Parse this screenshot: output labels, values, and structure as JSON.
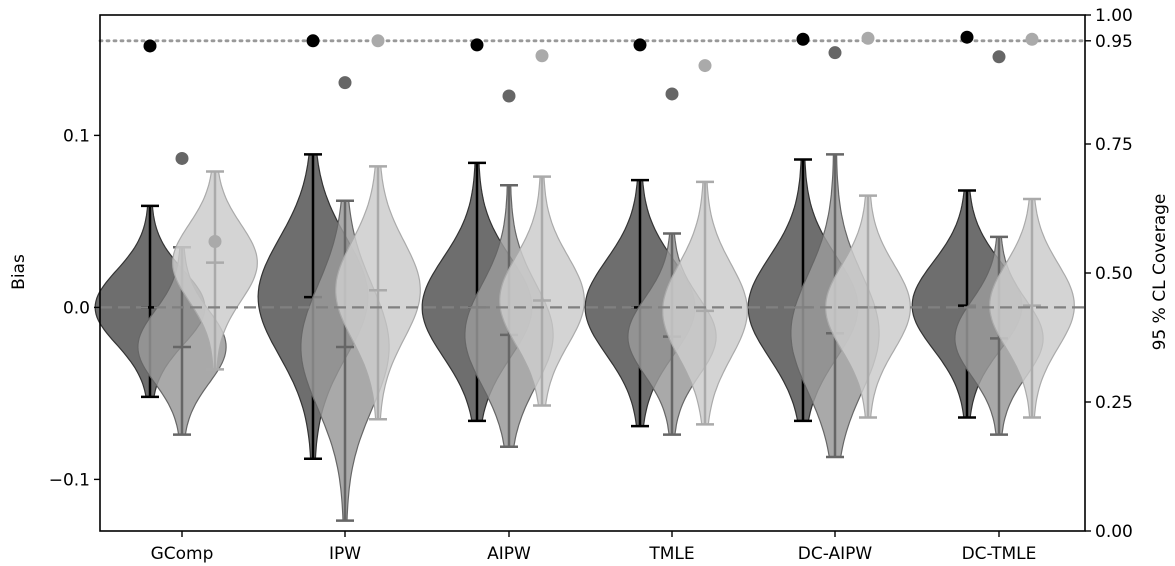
{
  "chart_data": {
    "type": "violin",
    "categories": [
      "GComp",
      "IPW",
      "AIPW",
      "TMLE",
      "DC-AIPW",
      "DC-TMLE"
    ],
    "xlabel": "",
    "ylabel": "Bias",
    "ylabel_right": "95 % CL Coverage",
    "ylim": [
      -0.13,
      0.17
    ],
    "ylim_right": [
      0.0,
      1.0
    ],
    "yticks": [
      -0.1,
      0.0,
      0.1
    ],
    "yticks_right": [
      0.0,
      0.25,
      0.5,
      0.75,
      0.95,
      1.0
    ],
    "ytick_labels": [
      "−0.1",
      "0.0",
      "0.1"
    ],
    "ytick_labels_right": [
      "0.00",
      "0.25",
      "0.50",
      "0.75",
      "0.95",
      "1.00"
    ],
    "reference_lines": [
      {
        "axis": "left",
        "value": 0.0,
        "style": "dashed",
        "color": "#808080"
      },
      {
        "axis": "right",
        "value": 0.95,
        "style": "dotted",
        "color": "#999999"
      }
    ],
    "grid": false,
    "series": [
      {
        "color": "#000000",
        "violin_color": "#555555",
        "median": [
          0.0,
          0.006,
          0.0,
          0.0,
          0.0,
          0.001
        ],
        "min": [
          -0.052,
          -0.088,
          -0.066,
          -0.069,
          -0.066,
          -0.064
        ],
        "max": [
          0.059,
          0.089,
          0.084,
          0.074,
          0.086,
          0.068
        ],
        "width": [
          0.06,
          0.06,
          0.06,
          0.06,
          0.06,
          0.06
        ],
        "coverage": [
          0.94,
          0.95,
          0.942,
          0.942,
          0.953,
          0.957
        ]
      },
      {
        "color": "#666666",
        "violin_color": "#9a9a9a",
        "median": [
          -0.023,
          -0.023,
          -0.016,
          -0.017,
          -0.015,
          -0.018
        ],
        "min": [
          -0.074,
          -0.124,
          -0.081,
          -0.074,
          -0.087,
          -0.074
        ],
        "max": [
          0.035,
          0.062,
          0.071,
          0.043,
          0.089,
          0.041
        ],
        "width": [
          0.048,
          0.048,
          0.048,
          0.048,
          0.048,
          0.048
        ],
        "coverage": [
          0.722,
          0.869,
          0.843,
          0.847,
          0.927,
          0.919
        ]
      },
      {
        "color": "#aaaaaa",
        "violin_color": "#cccccc",
        "median": [
          0.026,
          0.01,
          0.004,
          -0.002,
          0.0,
          0.001
        ],
        "min": [
          -0.036,
          -0.065,
          -0.057,
          -0.068,
          -0.064,
          -0.064
        ],
        "max": [
          0.079,
          0.082,
          0.076,
          0.073,
          0.065,
          0.063
        ],
        "width": [
          0.046,
          0.046,
          0.046,
          0.046,
          0.046,
          0.046
        ],
        "coverage": [
          0.561,
          0.95,
          0.921,
          0.902,
          0.955,
          0.953
        ]
      }
    ]
  }
}
